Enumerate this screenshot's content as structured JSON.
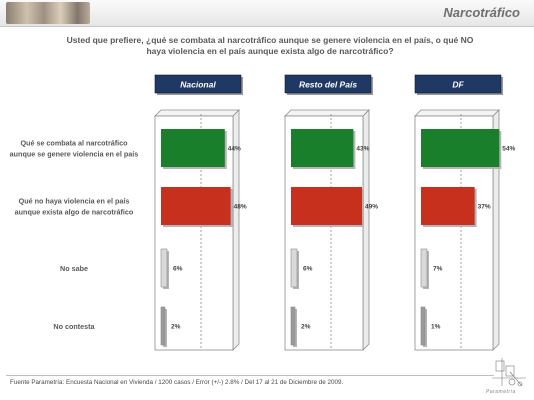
{
  "header": {
    "title": "Narcotráfico"
  },
  "question_lines": [
    "Usted que prefiere, ¿qué se combata al narcotráfico aunque se genere violencia en el país, o qué NO",
    "haya violencia en el país aunque exista algo de narcotráfico?"
  ],
  "colors": {
    "combata": "#1a7f2a",
    "no_violencia": "#c8301e",
    "no_sabe": "#d9d9d9",
    "no_contesta": "#9a9a9a",
    "tab": "#1f3864"
  },
  "chart_data": {
    "type": "bar",
    "orientation": "horizontal",
    "categories": [
      [
        "Qué se combata al narcotráfico",
        "aunque se genere violencia en el país"
      ],
      [
        "Qué no haya violencia en el país",
        "aunque exista algo de narcotráfico"
      ],
      [
        "No sabe"
      ],
      [
        "No contesta"
      ]
    ],
    "series": [
      {
        "name": "Nacional",
        "values": [
          44,
          48,
          6,
          2
        ]
      },
      {
        "name": "Resto del País",
        "values": [
          43,
          49,
          6,
          2
        ]
      },
      {
        "name": "DF",
        "values": [
          54,
          37,
          7,
          1
        ]
      }
    ],
    "value_suffix": "%",
    "xlim": [
      0,
      100
    ]
  },
  "footer": {
    "source": "Fuente Parametría: Encuesta Nacional en Vivienda / 1200 casos / Error (+/-) 2.8% / Del 17 al 21 de Diciembre de 2009."
  },
  "brand": {
    "name": "Parametría",
    "icon": "parametria-logo-icon"
  }
}
